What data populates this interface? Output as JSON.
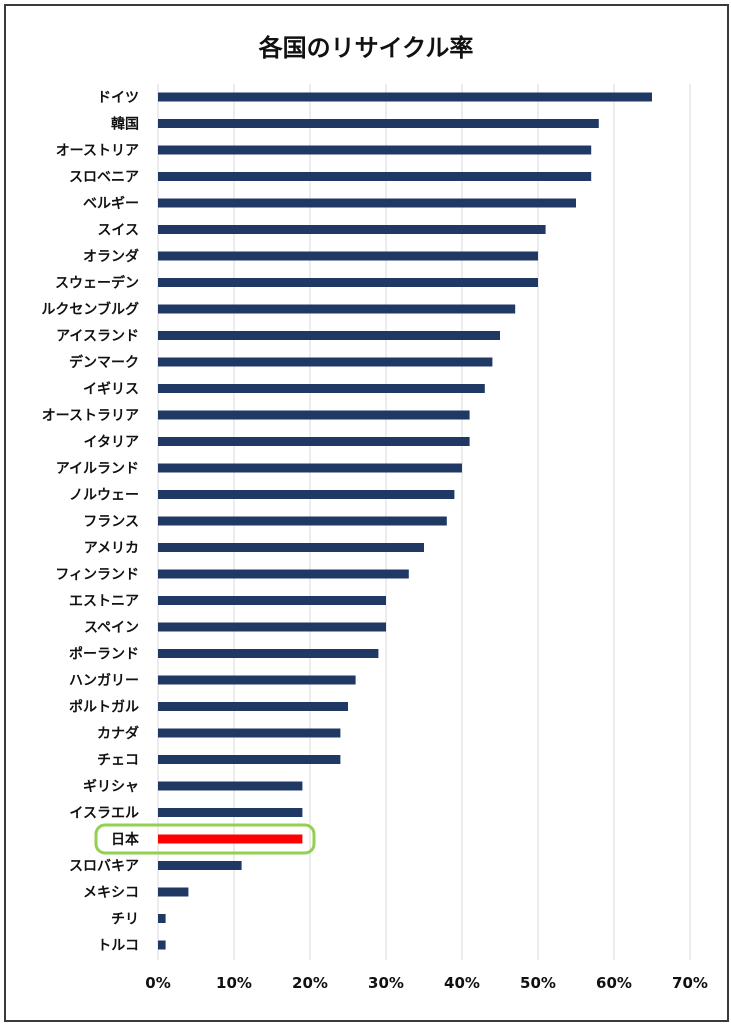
{
  "chart_data": {
    "type": "bar",
    "orientation": "horizontal",
    "title": "各国のリサイクル率",
    "categories": [
      "ドイツ",
      "韓国",
      "オーストリア",
      "スロベニア",
      "ベルギー",
      "スイス",
      "オランダ",
      "スウェーデン",
      "ルクセンブルグ",
      "アイスランド",
      "デンマーク",
      "イギリス",
      "オーストラリア",
      "イタリア",
      "アイルランド",
      "ノルウェー",
      "フランス",
      "アメリカ",
      "フィンランド",
      "エストニア",
      "スペイン",
      "ポーランド",
      "ハンガリー",
      "ポルトガル",
      "カナダ",
      "チェコ",
      "ギリシャ",
      "イスラエル",
      "日本",
      "スロバキア",
      "メキシコ",
      "チリ",
      "トルコ"
    ],
    "values": [
      65,
      58,
      57,
      57,
      55,
      51,
      50,
      50,
      47,
      45,
      44,
      43,
      41,
      41,
      40,
      39,
      38,
      35,
      33,
      30,
      30,
      29,
      26,
      25,
      24,
      24,
      19,
      19,
      19,
      11,
      4,
      1,
      1
    ],
    "xlim": [
      0,
      70
    ],
    "x_ticks": [
      "0%",
      "10%",
      "20%",
      "30%",
      "40%",
      "50%",
      "60%",
      "70%"
    ],
    "grid": true,
    "colors": {
      "bar": "#1f3864",
      "highlight": "#ff0000",
      "highlight_outline": "#92d050",
      "grid": "#d9d9d9"
    },
    "highlight_category": "日本"
  }
}
